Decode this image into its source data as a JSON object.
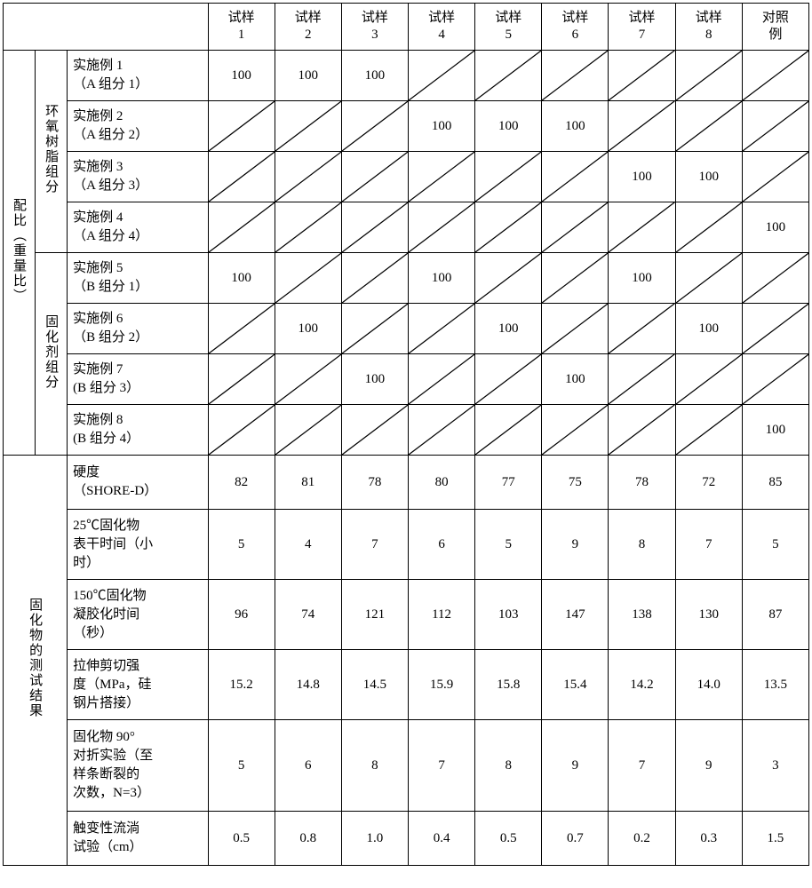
{
  "header": {
    "blank1": "",
    "blank2": "",
    "blank3": "",
    "cols": [
      "试样\n1",
      "试样\n2",
      "试样\n3",
      "试样\n4",
      "试样\n5",
      "试样\n6",
      "试样\n7",
      "试样\n8",
      "对照\n例"
    ]
  },
  "section1": {
    "title": "配比（重量比）",
    "groupA": {
      "title": "环氧树脂组分",
      "rows": [
        {
          "label": "实施例 1\n（A 组分 1）",
          "vals": [
            "100",
            "100",
            "100",
            "/",
            "/",
            "/",
            "/",
            "/",
            "/"
          ]
        },
        {
          "label": "实施例 2\n（A 组分 2）",
          "vals": [
            "/",
            "/",
            "/",
            "100",
            "100",
            "100",
            "/",
            "/",
            "/"
          ]
        },
        {
          "label": "实施例 3\n（A 组分 3）",
          "vals": [
            "/",
            "/",
            "/",
            "/",
            "/",
            "/",
            "100",
            "100",
            "/"
          ]
        },
        {
          "label": "实施例 4\n（A 组分 4）",
          "vals": [
            "/",
            "/",
            "/",
            "/",
            "/",
            "/",
            "/",
            "/",
            "100"
          ]
        }
      ]
    },
    "groupB": {
      "title": "固化剂组分",
      "rows": [
        {
          "label": "实施例 5\n（B 组分 1）",
          "vals": [
            "100",
            "/",
            "/",
            "100",
            "/",
            "/",
            "100",
            "/",
            "/"
          ]
        },
        {
          "label": "实施例 6\n（B 组分 2）",
          "vals": [
            "/",
            "100",
            "/",
            "/",
            "100",
            "/",
            "/",
            "100",
            "/"
          ]
        },
        {
          "label": "实施例 7\n(B 组分 3）",
          "vals": [
            "/",
            "/",
            "100",
            "/",
            "/",
            "100",
            "/",
            "/",
            "/"
          ]
        },
        {
          "label": "实施例 8\n(B 组分 4）",
          "vals": [
            "/",
            "/",
            "/",
            "/",
            "/",
            "/",
            "/",
            "/",
            "100"
          ]
        }
      ]
    }
  },
  "section2": {
    "title": "固化物的测试结果",
    "rows": [
      {
        "label": "硬度\n（SHORE-D）",
        "vals": [
          "82",
          "81",
          "78",
          "80",
          "77",
          "75",
          "78",
          "72",
          "85"
        ]
      },
      {
        "label": "25℃固化物\n表干时间（小\n时）",
        "vals": [
          "5",
          "4",
          "7",
          "6",
          "5",
          "9",
          "8",
          "7",
          "5"
        ]
      },
      {
        "label": "150℃固化物\n凝胶化时间\n（秒）",
        "vals": [
          "96",
          "74",
          "121",
          "112",
          "103",
          "147",
          "138",
          "130",
          "87"
        ]
      },
      {
        "label": "拉伸剪切强\n度（MPa，硅\n钢片搭接）",
        "vals": [
          "15.2",
          "14.8",
          "14.5",
          "15.9",
          "15.8",
          "15.4",
          "14.2",
          "14.0",
          "13.5"
        ]
      },
      {
        "label": "固化物 90°\n对折实验（至\n样条断裂的\n次数，N=3）",
        "vals": [
          "5",
          "6",
          "8",
          "7",
          "8",
          "9",
          "7",
          "9",
          "3"
        ]
      },
      {
        "label": "触变性流淌\n试验（cm）",
        "vals": [
          "0.5",
          "0.8",
          "1.0",
          "0.4",
          "0.5",
          "0.7",
          "0.2",
          "0.3",
          "1.5"
        ]
      }
    ]
  },
  "style": {
    "border_color": "#000000",
    "bg_color": "#ffffff",
    "font_family": "SimSun",
    "font_size_pt": 11,
    "diag_stroke": "#000000",
    "diag_width": 1
  }
}
